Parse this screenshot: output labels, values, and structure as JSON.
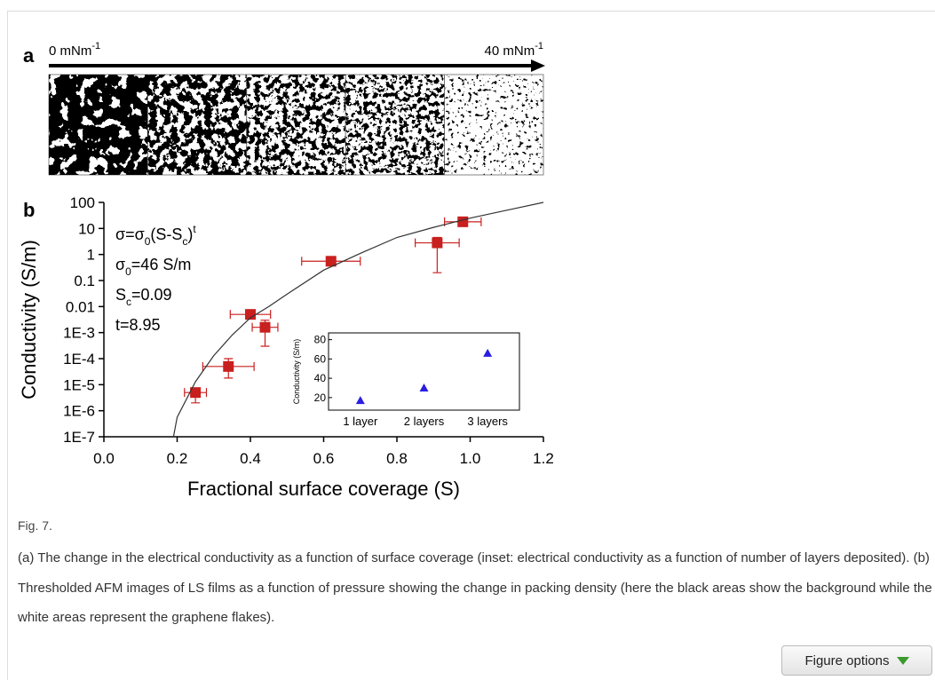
{
  "panel_a": {
    "label": "a",
    "left_label": "0 mNm",
    "left_sup": "-1",
    "right_label": "40 mNm",
    "right_sup": "-1"
  },
  "chart_data": [
    {
      "type": "scatter",
      "panel_label": "b",
      "xlabel": "Fractional surface coverage (S)",
      "ylabel": "Conductivity (S/m)",
      "xlim": [
        0,
        1.2
      ],
      "xticks": [
        {
          "value": 0,
          "label": "0.0"
        },
        0.2,
        0.4,
        0.6,
        0.8,
        {
          "value": 1,
          "label": "1.0"
        },
        1.2
      ],
      "ylim": [
        1e-07,
        100
      ],
      "log_y": true,
      "yticks": [
        {
          "value": 1e-07,
          "label": "1E-7"
        },
        {
          "value": 1e-06,
          "label": "1E-6"
        },
        {
          "value": 1e-05,
          "label": "1E-5"
        },
        {
          "value": 0.0001,
          "label": "1E-4"
        },
        {
          "value": 0.001,
          "label": "1E-3"
        },
        0.01,
        0.1,
        1,
        10,
        100
      ],
      "annotations": [
        [
          "σ=σ",
          "0",
          "(S-S",
          "c",
          ")",
          "t"
        ],
        [
          "σ",
          "0",
          "=46 S/m"
        ],
        [
          "S",
          "c",
          "=0.09"
        ],
        [
          "t=8.95"
        ]
      ],
      "series": [
        {
          "color": "#c8201e",
          "marker": "square",
          "x": [
            0.25,
            0.34,
            0.4,
            0.44,
            0.62,
            0.91,
            0.98
          ],
          "values": [
            5e-06,
            5e-05,
            0.005,
            0.0016,
            0.55,
            2.8,
            18
          ],
          "x_err": [
            0.03,
            0.07,
            0.055,
            0.035,
            0.08,
            0.06,
            0.05
          ],
          "y_low": [
            2e-06,
            1.8e-05,
            0.004,
            0.0003,
            0.45,
            0.2,
            15
          ],
          "y_high": [
            6e-06,
            0.0001,
            0.006,
            0.003,
            0.65,
            4.5,
            21
          ]
        },
        {
          "type": "line",
          "color": "#333333",
          "x": [
            0.19,
            0.2,
            0.25,
            0.3,
            0.35,
            0.4,
            0.45,
            0.5,
            0.6,
            0.7,
            0.8,
            0.9,
            1.0,
            1.1,
            1.2
          ],
          "values": [
            1e-07,
            5.6e-07,
            1.3e-05,
            0.00013,
            0.0008,
            0.0037,
            0.01,
            0.03,
            0.25,
            1.1,
            4.5,
            11,
            25,
            50,
            100
          ]
        }
      ]
    },
    {
      "type": "scatter",
      "marker": "triangle",
      "ylabel": "Conductivity (S/m)",
      "categories": [
        "1 layer",
        "2 layers",
        "3 layers"
      ],
      "values": [
        17,
        30,
        66
      ],
      "color": "#2a1ee0",
      "ylim": [
        7,
        87
      ],
      "yticks": [
        20,
        40,
        60,
        80
      ]
    }
  ],
  "caption": {
    "label": "Fig. 7.",
    "text": "(a) The change in the electrical conductivity as a function of surface coverage (inset: electrical conductivity as a function of number of layers deposited). (b) Thresholded AFM images of LS films as a function of pressure showing the change in packing density (here the black areas show the background while the white areas represent the graphene flakes)."
  },
  "button": "Figure options"
}
